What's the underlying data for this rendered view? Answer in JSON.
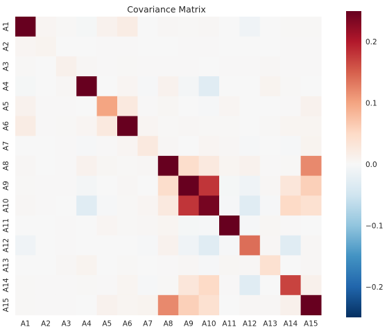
{
  "chart_data": {
    "type": "heatmap",
    "title": "Covariance Matrix",
    "xlabel": "",
    "ylabel": "",
    "rows": [
      "A1",
      "A2",
      "A3",
      "A4",
      "A5",
      "A6",
      "A7",
      "A8",
      "A9",
      "A10",
      "A11",
      "A12",
      "A13",
      "A14",
      "A15"
    ],
    "columns": [
      "A1",
      "A2",
      "A3",
      "A4",
      "A5",
      "A6",
      "A7",
      "A8",
      "A9",
      "A10",
      "A11",
      "A12",
      "A13",
      "A14",
      "A15"
    ],
    "values": [
      [
        0.26,
        0.005,
        0.002,
        -0.004,
        0.01,
        0.02,
        0.0,
        0.003,
        0.002,
        0.003,
        0.0,
        -0.01,
        0.0,
        0.002,
        0.002
      ],
      [
        0.005,
        0.008,
        0.0,
        0.0,
        0.001,
        0.001,
        0.0,
        0.0,
        0.001,
        0.001,
        0.0,
        0.0,
        0.0,
        0.001,
        0.001
      ],
      [
        0.002,
        0.0,
        0.012,
        0.003,
        0.001,
        0.002,
        0.001,
        0.001,
        0.001,
        0.0,
        0.001,
        0.001,
        0.003,
        0.001,
        0.001
      ],
      [
        -0.004,
        0.0,
        0.003,
        0.25,
        0.0,
        0.005,
        -0.002,
        0.01,
        -0.005,
        -0.03,
        0.0,
        0.0,
        0.008,
        0.002,
        0.0
      ],
      [
        0.01,
        0.001,
        0.001,
        0.0,
        0.1,
        0.025,
        0.001,
        0.004,
        0.0,
        -0.002,
        0.005,
        0.0,
        0.0,
        0.001,
        0.01
      ],
      [
        0.02,
        0.001,
        0.002,
        0.005,
        0.025,
        0.25,
        0.005,
        0.002,
        0.003,
        0.002,
        0.002,
        0.0,
        0.002,
        0.006,
        0.006
      ],
      [
        0.0,
        0.0,
        0.001,
        -0.002,
        0.001,
        0.005,
        0.025,
        0.003,
        0.0,
        0.005,
        0.003,
        -0.002,
        0.0,
        -0.002,
        0.008
      ],
      [
        0.003,
        0.0,
        0.001,
        0.01,
        0.004,
        0.002,
        0.003,
        0.26,
        0.045,
        0.025,
        0.006,
        0.01,
        0.001,
        0.002,
        0.12
      ],
      [
        0.002,
        0.001,
        0.001,
        -0.005,
        0.0,
        0.003,
        0.0,
        0.045,
        0.26,
        0.18,
        -0.004,
        -0.01,
        0.003,
        0.03,
        0.06
      ],
      [
        0.003,
        0.001,
        0.0,
        -0.03,
        -0.002,
        0.002,
        0.005,
        0.025,
        0.18,
        0.24,
        -0.002,
        -0.03,
        -0.002,
        0.05,
        0.04
      ],
      [
        0.0,
        0.0,
        0.001,
        0.0,
        0.005,
        0.002,
        0.003,
        0.006,
        -0.004,
        -0.002,
        0.26,
        -0.002,
        0.004,
        0.001,
        0.0
      ],
      [
        -0.01,
        0.0,
        0.001,
        0.0,
        0.0,
        0.0,
        -0.002,
        0.01,
        -0.01,
        -0.03,
        -0.002,
        0.14,
        0.003,
        -0.03,
        0.003
      ],
      [
        0.0,
        0.0,
        0.003,
        0.008,
        0.0,
        0.002,
        0.0,
        0.001,
        0.003,
        -0.002,
        0.004,
        0.003,
        0.04,
        0.0,
        0.003
      ],
      [
        0.002,
        0.001,
        0.001,
        0.002,
        0.001,
        0.006,
        -0.002,
        0.002,
        0.03,
        0.05,
        0.001,
        -0.03,
        0.0,
        0.17,
        0.012
      ],
      [
        0.002,
        0.001,
        0.001,
        0.0,
        0.01,
        0.006,
        0.008,
        0.12,
        0.06,
        0.04,
        0.0,
        0.003,
        0.003,
        0.012,
        0.26
      ]
    ],
    "colorbar": {
      "vmin": -0.25,
      "vmax": 0.25,
      "ticks": [
        -0.2,
        -0.1,
        0.0,
        0.1,
        0.2
      ],
      "tick_labels": [
        "−0.2",
        "−0.1",
        "0.0",
        "0.1",
        "0.2"
      ],
      "colormap": "RdBu_r",
      "colors": [
        "#053061",
        "#2166ac",
        "#4393c3",
        "#92c5de",
        "#d1e5f0",
        "#f7f7f7",
        "#fddbc7",
        "#f4a582",
        "#d6604d",
        "#b2182b",
        "#67001f"
      ]
    },
    "grid": false,
    "legend": "colorbar-right"
  }
}
